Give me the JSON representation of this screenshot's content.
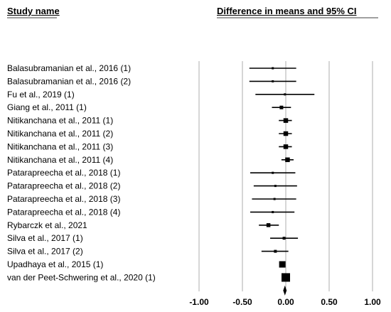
{
  "header": {
    "study_col": "Study name",
    "effect_col": "Difference in means and 95% CI"
  },
  "chart_data": {
    "type": "forest",
    "xlim": [
      -1.0,
      1.0
    ],
    "xticks": [
      "-1.00",
      "-0.50",
      "0.00",
      "0.50",
      "1.00"
    ],
    "xtick_values": [
      -1.0,
      -0.5,
      0.0,
      0.5,
      1.0
    ],
    "grid": true,
    "studies": [
      {
        "name": "Balasubramanian et al., 2016 (1)",
        "effect": -0.15,
        "lower": -0.42,
        "upper": 0.12,
        "weight": 0.1
      },
      {
        "name": "Balasubramanian et al., 2016 (2)",
        "effect": -0.15,
        "lower": -0.42,
        "upper": 0.12,
        "weight": 0.1
      },
      {
        "name": "Fu et al., 2019 (1)",
        "effect": -0.01,
        "lower": -0.35,
        "upper": 0.33,
        "weight": 0.1
      },
      {
        "name": "Giang et al., 2011 (1)",
        "effect": -0.05,
        "lower": -0.16,
        "upper": 0.06,
        "weight": 0.3
      },
      {
        "name": "Nitikanchana et al., 2011 (1)",
        "effect": 0.0,
        "lower": -0.08,
        "upper": 0.07,
        "weight": 0.45
      },
      {
        "name": "Nitikanchana et al., 2011 (2)",
        "effect": 0.0,
        "lower": -0.08,
        "upper": 0.07,
        "weight": 0.45
      },
      {
        "name": "Nitikanchana et al., 2011 (3)",
        "effect": 0.0,
        "lower": -0.08,
        "upper": 0.07,
        "weight": 0.45
      },
      {
        "name": "Nitikanchana et al., 2011 (4)",
        "effect": 0.02,
        "lower": -0.05,
        "upper": 0.09,
        "weight": 0.45
      },
      {
        "name": "Patarapreecha et al., 2018 (1)",
        "effect": -0.15,
        "lower": -0.41,
        "upper": 0.11,
        "weight": 0.1
      },
      {
        "name": "Patarapreecha et al., 2018 (2)",
        "effect": -0.12,
        "lower": -0.37,
        "upper": 0.13,
        "weight": 0.1
      },
      {
        "name": "Patarapreecha et al., 2018 (3)",
        "effect": -0.13,
        "lower": -0.39,
        "upper": 0.12,
        "weight": 0.1
      },
      {
        "name": "Patarapreecha et al., 2018 (4)",
        "effect": -0.15,
        "lower": -0.41,
        "upper": 0.1,
        "weight": 0.1
      },
      {
        "name": "Rybarczk et al., 2021",
        "effect": -0.2,
        "lower": -0.31,
        "upper": -0.08,
        "weight": 0.35
      },
      {
        "name": "Silva et al., 2017 (1)",
        "effect": -0.02,
        "lower": -0.18,
        "upper": 0.14,
        "weight": 0.2
      },
      {
        "name": "Silva et al., 2017 (2)",
        "effect": -0.12,
        "lower": -0.28,
        "upper": 0.03,
        "weight": 0.2
      },
      {
        "name": "Upadhaya et al., 2015 (1)",
        "effect": -0.04,
        "lower": -0.07,
        "upper": -0.01,
        "weight": 0.7
      },
      {
        "name": "van der Peet-Schwering et al., 2020 (1)",
        "effect": 0.0,
        "lower": -0.03,
        "upper": 0.03,
        "weight": 1.0
      }
    ],
    "summary": {
      "effect": -0.01,
      "lower": -0.03,
      "upper": 0.01
    }
  }
}
